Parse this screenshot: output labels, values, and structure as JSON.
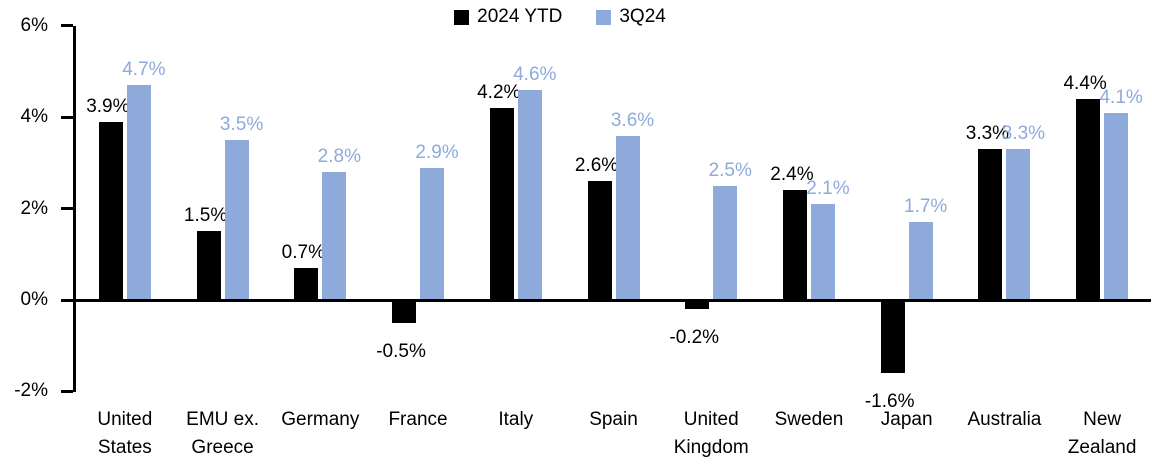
{
  "chart_data": {
    "type": "bar",
    "title": "",
    "xlabel": "",
    "ylabel": "",
    "categories": [
      "United States",
      "EMU ex. Greece",
      "Germany",
      "France",
      "Italy",
      "Spain",
      "United Kingdom",
      "Sweden",
      "Japan",
      "Australia",
      "New Zealand"
    ],
    "series": [
      {
        "name": "2024 YTD",
        "color": "#000000",
        "label_color": "#000000",
        "values": [
          3.9,
          1.5,
          0.7,
          -0.5,
          4.2,
          2.6,
          -0.2,
          2.4,
          -1.6,
          3.3,
          4.4
        ]
      },
      {
        "name": "3Q24",
        "color": "#8EAADB",
        "label_color": "#8EAADB",
        "values": [
          4.7,
          3.5,
          2.8,
          2.9,
          4.6,
          3.6,
          2.5,
          2.1,
          1.7,
          3.3,
          4.1
        ]
      }
    ],
    "ylim": [
      -2,
      6
    ],
    "yticks": [
      6,
      4,
      2,
      0,
      -2
    ],
    "ytick_labels": [
      "6%",
      "4%",
      "2%",
      "0%",
      "-2%"
    ],
    "value_label_suffix": "%",
    "grid": false,
    "legend_position": "top-center",
    "axis_color": "#000000"
  }
}
